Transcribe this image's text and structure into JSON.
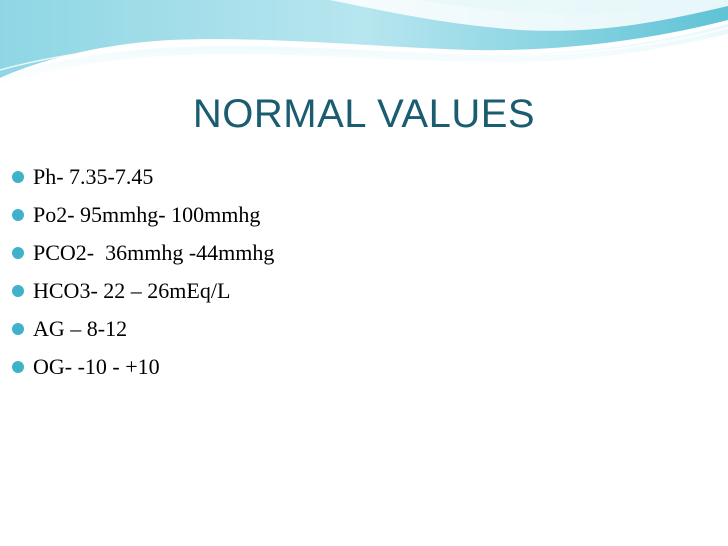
{
  "slide": {
    "title": "NORMAL VALUES",
    "bullets": [
      "Ph- 7.35-7.45",
      "Po2- 95mmhg- 100mmhg",
      "PCO2-  36mmhg -44mmhg",
      "HCO3- 22 – 26mEq/L",
      "AG – 8-12",
      "OG- -10 - +10"
    ]
  },
  "colors": {
    "title": "#1a5c70",
    "bullet": "#3fb2c9",
    "wave_dark": "#5fc3d6",
    "wave_light": "#cdeef4"
  }
}
